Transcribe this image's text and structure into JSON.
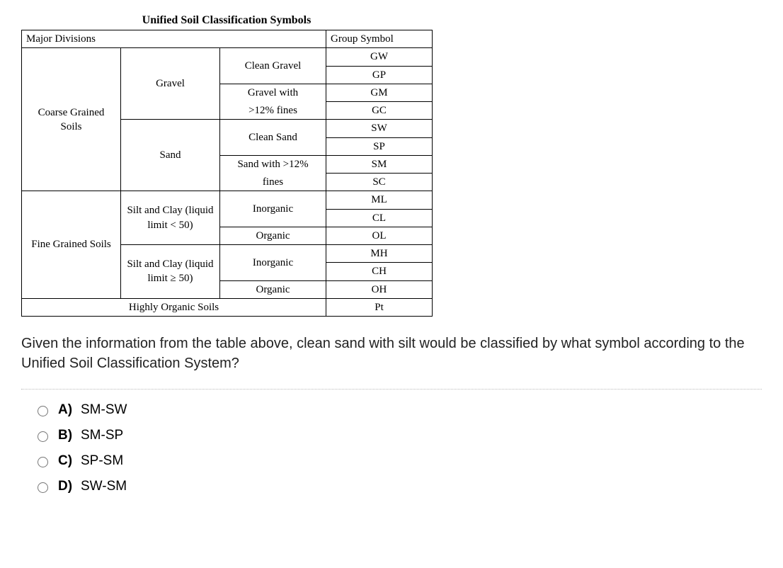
{
  "title": "Unified Soil Classification Symbols",
  "table": {
    "header": {
      "major": "Major Divisions",
      "group": "Group Symbol"
    },
    "coarse": {
      "label": "Coarse Grained Soils",
      "gravel": {
        "label": "Gravel",
        "clean": {
          "label": "Clean Gravel",
          "sym1": "GW",
          "sym2": "GP"
        },
        "fines": {
          "label1": "Gravel with",
          "label2": ">12% fines",
          "sym1": "GM",
          "sym2": "GC"
        }
      },
      "sand": {
        "label": "Sand",
        "clean": {
          "label": "Clean Sand",
          "sym1": "SW",
          "sym2": "SP"
        },
        "fines": {
          "label1": "Sand with >12%",
          "label2": "fines",
          "sym1": "SM",
          "sym2": "SC"
        }
      }
    },
    "fine": {
      "label": "Fine Grained Soils",
      "low": {
        "label": "Silt and Clay (liquid limit < 50)",
        "inorganic": {
          "label": "Inorganic",
          "sym1": "ML",
          "sym2": "CL"
        },
        "organic": {
          "label": "Organic",
          "sym": "OL"
        }
      },
      "high": {
        "label": "Silt and Clay (liquid limit ≥ 50)",
        "inorganic": {
          "label": "Inorganic",
          "sym1": "MH",
          "sym2": "CH"
        },
        "organic": {
          "label": "Organic",
          "sym": "OH"
        }
      }
    },
    "organic": {
      "label": "Highly Organic Soils",
      "sym": "Pt"
    }
  },
  "question": "Given the information from the table above, clean sand with silt would be classified by what symbol according to the Unified Soil Classification System?",
  "options": {
    "a": {
      "letter": "A)",
      "text": "SM-SW"
    },
    "b": {
      "letter": "B)",
      "text": "SM-SP"
    },
    "c": {
      "letter": "C)",
      "text": "SP-SM"
    },
    "d": {
      "letter": "D)",
      "text": "SW-SM"
    }
  }
}
